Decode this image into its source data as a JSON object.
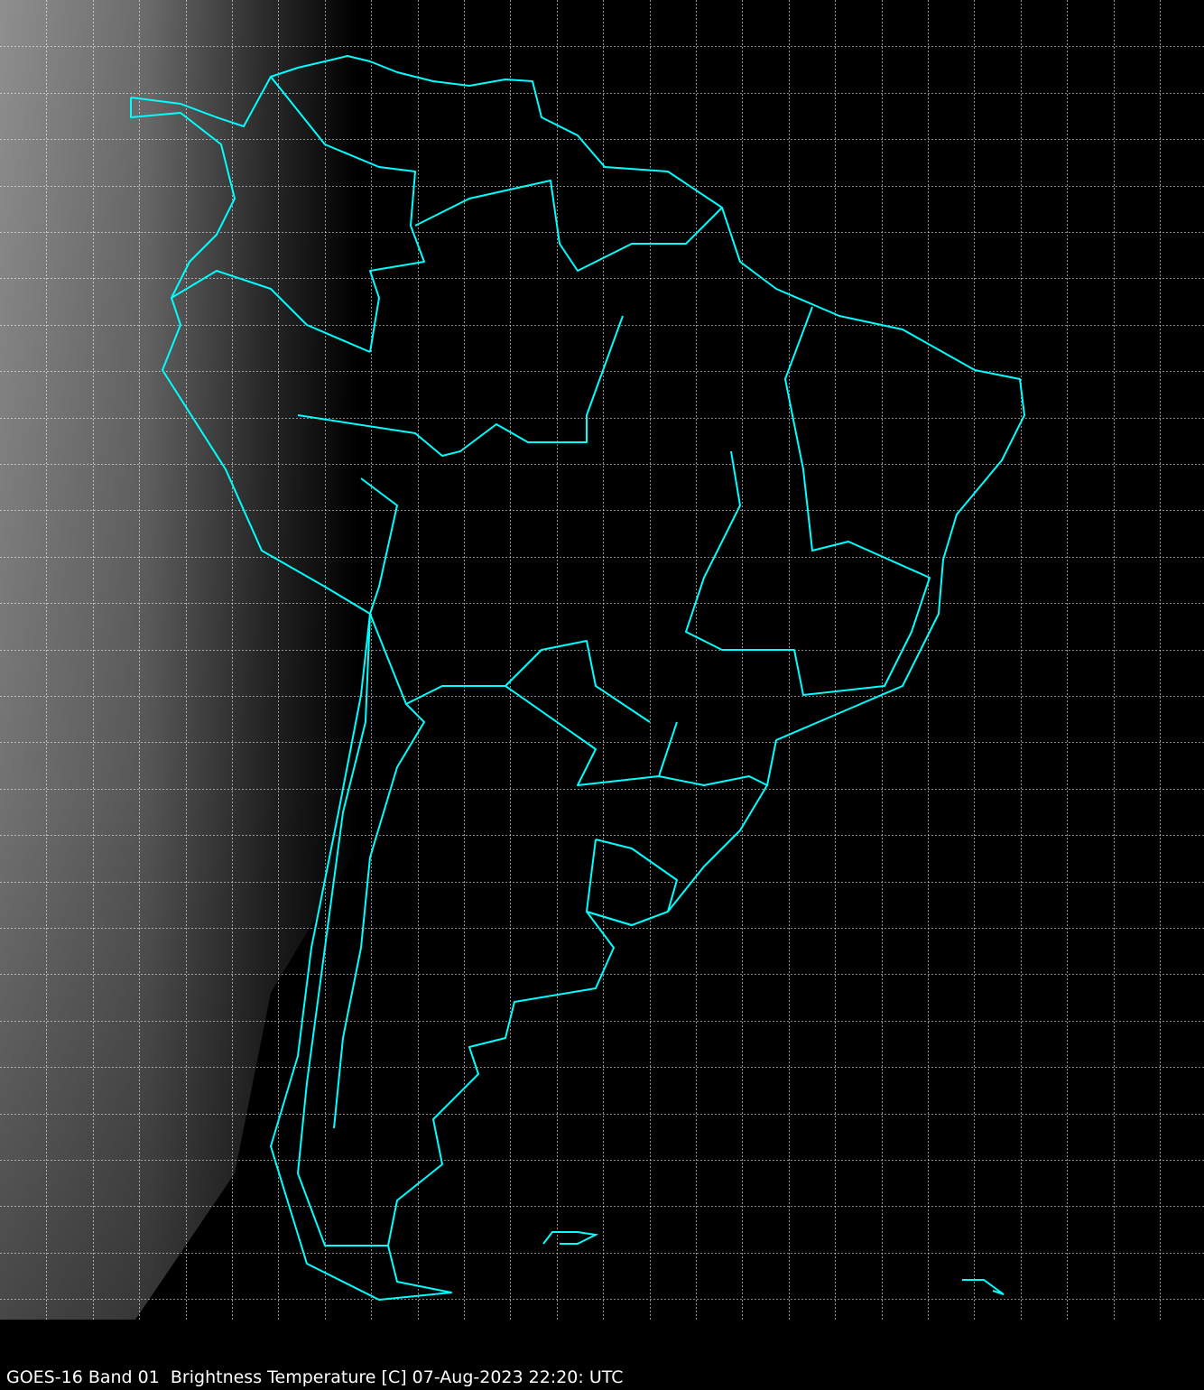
{
  "caption": "GOES-16 Band 01  Brightness Temperature [C] 07-Aug-2023 22:20: UTC",
  "colors": {
    "background": "#000000",
    "borders": "#00ffff",
    "grid": "#ffffff",
    "cloud_gray": "#8a8a8a"
  },
  "map": {
    "region": "South America",
    "grid": true,
    "grid_style": "dashed"
  }
}
